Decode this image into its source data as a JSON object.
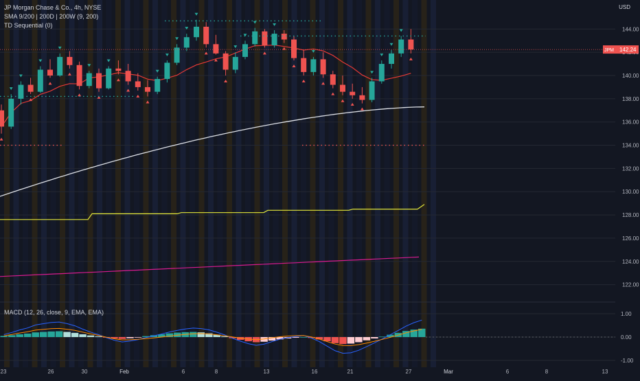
{
  "legend": {
    "symbol_line": "JP Morgan Chase & Co., 4h, NYSE",
    "sma_line": "SMA 9/200 | 200D | 200W (9, 200)",
    "td_line": "TD Sequential (0)",
    "macd_line": "MACD (12, 26, close, 9, EMA, EMA)"
  },
  "price_axis": {
    "currency": "USD",
    "ticks": [
      "144.00",
      "142.00",
      "140.00",
      "138.00",
      "136.00",
      "134.00",
      "132.00",
      "130.00",
      "128.00",
      "126.00",
      "124.00",
      "122.00"
    ],
    "last_price": {
      "symbol": "JPM",
      "value": "142.24"
    }
  },
  "macd_axis": {
    "ticks": [
      "1.00",
      "0.00",
      "-1.00"
    ]
  },
  "time_axis": {
    "labels": [
      "23",
      "26",
      "30",
      "Feb",
      "6",
      "8",
      "13",
      "16",
      "21",
      "27",
      "Mar",
      "6",
      "8",
      "13"
    ]
  },
  "colors": {
    "up": "#26a69a",
    "down": "#ef5350",
    "sma9": "#e53935",
    "sma200": "#dcdfe5",
    "sma200d": "#e4e83a",
    "sma200w": "#d81b8f",
    "macd": "#2962ff",
    "signal": "#ff8a00",
    "background": "#131722"
  },
  "chart_data": [
    {
      "type": "candlestick",
      "title": "JP Morgan Chase & Co., 4h, NYSE",
      "ylim": [
        120.5,
        146.5
      ],
      "x": [
        "23",
        "",
        "",
        "26",
        "",
        "",
        "",
        "30",
        "",
        "",
        "",
        "Feb",
        "",
        "",
        "",
        "",
        "",
        "",
        "6",
        "",
        "",
        "8",
        "",
        "",
        "",
        "",
        "",
        "13",
        "",
        "",
        "",
        "16",
        "",
        "",
        "",
        "",
        "21",
        "",
        "",
        "",
        "",
        "",
        "27",
        ""
      ],
      "ohlc": [
        [
          137.0,
          137.5,
          135.0,
          135.6
        ],
        [
          135.6,
          138.4,
          135.4,
          138.0
        ],
        [
          138.0,
          139.5,
          137.5,
          139.2
        ],
        [
          139.2,
          139.8,
          138.4,
          138.6
        ],
        [
          138.6,
          140.8,
          138.5,
          140.5
        ],
        [
          140.5,
          141.4,
          139.8,
          140.0
        ],
        [
          140.0,
          141.9,
          139.9,
          141.6
        ],
        [
          141.6,
          142.1,
          140.6,
          140.9
        ],
        [
          140.9,
          141.2,
          138.8,
          139.1
        ],
        [
          139.1,
          140.4,
          138.9,
          140.2
        ],
        [
          140.2,
          140.6,
          138.6,
          138.9
        ],
        [
          138.9,
          140.8,
          138.8,
          140.6
        ],
        [
          140.6,
          141.3,
          140.1,
          140.4
        ],
        [
          140.4,
          141.0,
          139.2,
          139.5
        ],
        [
          139.5,
          140.2,
          138.7,
          139.0
        ],
        [
          139.0,
          139.6,
          138.2,
          138.6
        ],
        [
          138.6,
          139.9,
          138.4,
          139.7
        ],
        [
          139.7,
          141.3,
          139.4,
          141.1
        ],
        [
          141.1,
          142.7,
          140.9,
          142.4
        ],
        [
          142.4,
          143.6,
          142.1,
          143.3
        ],
        [
          143.3,
          144.8,
          143.0,
          144.2
        ],
        [
          144.2,
          144.6,
          142.4,
          142.7
        ],
        [
          142.7,
          143.5,
          141.8,
          141.9
        ],
        [
          141.9,
          142.1,
          140.0,
          140.5
        ],
        [
          140.5,
          142.0,
          140.2,
          141.6
        ],
        [
          141.6,
          143.0,
          141.4,
          142.7
        ],
        [
          142.7,
          144.1,
          142.5,
          143.8
        ],
        [
          143.8,
          144.0,
          142.4,
          142.6
        ],
        [
          142.6,
          143.9,
          142.4,
          143.6
        ],
        [
          143.6,
          143.9,
          142.8,
          143.1
        ],
        [
          143.1,
          143.4,
          141.3,
          141.5
        ],
        [
          141.5,
          142.2,
          140.0,
          140.3
        ],
        [
          140.3,
          141.6,
          140.0,
          141.4
        ],
        [
          141.4,
          142.0,
          139.8,
          140.1
        ],
        [
          140.1,
          140.4,
          138.9,
          139.2
        ],
        [
          139.2,
          140.0,
          138.3,
          138.6
        ],
        [
          138.6,
          139.3,
          138.0,
          138.3
        ],
        [
          138.3,
          139.0,
          137.6,
          137.9
        ],
        [
          137.9,
          139.8,
          137.7,
          139.5
        ],
        [
          139.5,
          141.3,
          139.3,
          141.0
        ],
        [
          141.0,
          142.2,
          140.6,
          141.9
        ],
        [
          141.9,
          143.4,
          141.6,
          143.1
        ],
        [
          143.1,
          144.0,
          141.9,
          142.24
        ]
      ]
    },
    {
      "type": "line",
      "ylim": [
        120.5,
        146.5
      ],
      "series": [
        {
          "values_start": 135.0,
          "values_end": 137.3
        },
        {
          "values_start": 129.6,
          "values_end": 137.3
        },
        {
          "values_start": 127.6,
          "values_end": 128.6
        },
        {
          "values_start": 122.7,
          "values_end": 124.4
        }
      ]
    },
    {
      "type": "bar",
      "title": "MACD (12, 26, close, 9, EMA, EMA)",
      "ylim": [
        -1.0,
        1.0
      ],
      "values": [
        0.05,
        0.08,
        0.12,
        0.15,
        0.2,
        0.22,
        0.24,
        0.25,
        0.22,
        0.18,
        0.12,
        0.07,
        0.03,
        -0.02,
        -0.06,
        -0.08,
        -0.05,
        -0.01,
        0.04,
        0.08,
        0.12,
        0.16,
        0.19,
        0.21,
        0.22,
        0.2,
        0.16,
        0.1,
        0.03,
        -0.05,
        -0.12,
        -0.18,
        -0.22,
        -0.2,
        -0.15,
        -0.1,
        -0.06,
        -0.03,
        0.0,
        -0.04,
        -0.1,
        -0.18,
        -0.26,
        -0.3,
        -0.28,
        -0.22,
        -0.14,
        -0.06,
        0.02,
        0.1,
        0.18,
        0.26,
        0.32,
        0.36
      ]
    }
  ]
}
